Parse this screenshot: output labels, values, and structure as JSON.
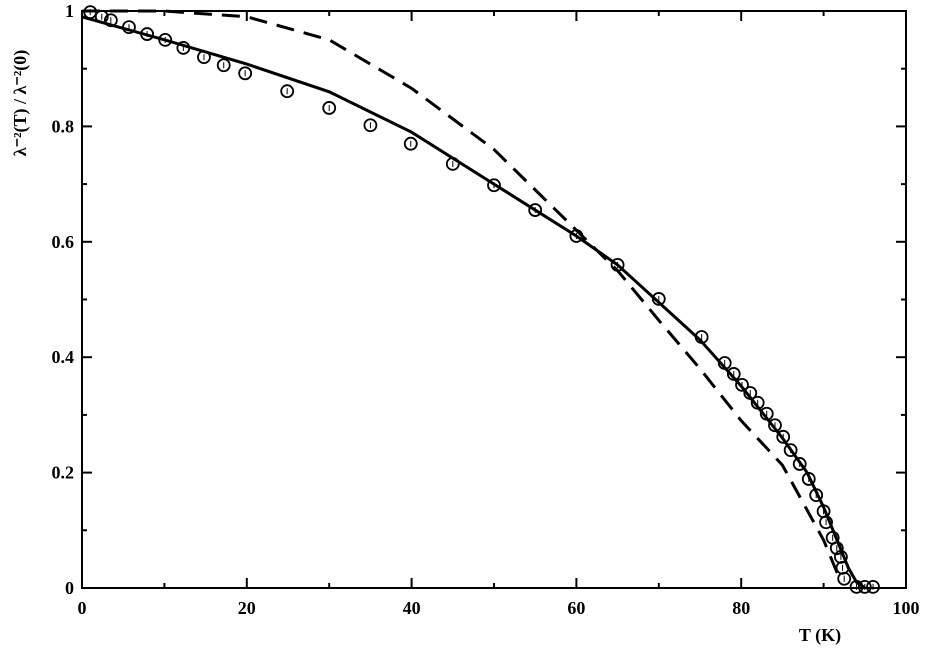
{
  "chart_data": {
    "type": "scatter",
    "xlabel": "T (K)",
    "ylabel": "λ⁻²(T) / λ⁻²(0)",
    "xlim": [
      0,
      100
    ],
    "ylim": [
      0,
      1
    ],
    "xticks": [
      0,
      20,
      40,
      60,
      80,
      100
    ],
    "yticks": [
      0,
      0.2,
      0.4,
      0.6,
      0.8,
      1
    ],
    "xminorticks": [
      10,
      30,
      50,
      70,
      90
    ],
    "yminorticks": [
      0.1,
      0.3,
      0.5,
      0.7,
      0.9
    ],
    "series": [
      {
        "type": "scatter",
        "color": "#000000",
        "x": [
          1,
          2.4,
          3.5,
          5.7,
          7.9,
          10.1,
          12.3,
          14.8,
          17.2,
          19.8,
          24.9,
          30,
          35,
          39.9,
          45,
          50,
          55,
          60,
          65,
          70,
          75.2,
          78,
          79.1,
          80.1,
          81.1,
          82,
          83.1,
          84.1,
          85.1,
          86,
          87.1,
          88.2,
          89.1,
          90,
          90.3,
          91.1,
          91.6,
          92.1,
          92.3,
          92.5,
          94,
          95,
          96
        ],
        "values": [
          0.998,
          0.99,
          0.984,
          0.972,
          0.96,
          0.95,
          0.936,
          0.92,
          0.906,
          0.892,
          0.861,
          0.832,
          0.802,
          0.77,
          0.735,
          0.698,
          0.655,
          0.61,
          0.56,
          0.501,
          0.435,
          0.39,
          0.371,
          0.352,
          0.338,
          0.321,
          0.302,
          0.282,
          0.262,
          0.239,
          0.215,
          0.189,
          0.161,
          0.133,
          0.114,
          0.087,
          0.069,
          0.054,
          0.035,
          0.016,
          0.002,
          0.002,
          0.002
        ]
      },
      {
        "type": "line",
        "color": "#000000",
        "dashed": false,
        "x": [
          0,
          10,
          20,
          30,
          40,
          50,
          60,
          65,
          70,
          75,
          80,
          85,
          88,
          90,
          92,
          93,
          94,
          95
        ],
        "values": [
          0.99,
          0.95,
          0.908,
          0.86,
          0.79,
          0.7,
          0.61,
          0.56,
          0.495,
          0.43,
          0.35,
          0.26,
          0.2,
          0.14,
          0.07,
          0.035,
          0.01,
          0
        ]
      },
      {
        "type": "line",
        "color": "#000000",
        "dashed": true,
        "x": [
          0,
          10,
          20,
          30,
          40,
          50,
          60,
          65,
          70,
          75,
          80,
          85,
          90,
          92
        ],
        "values": [
          1,
          1,
          0.99,
          0.95,
          0.866,
          0.76,
          0.62,
          0.55,
          0.464,
          0.38,
          0.29,
          0.213,
          0.083,
          0.014
        ]
      }
    ]
  }
}
